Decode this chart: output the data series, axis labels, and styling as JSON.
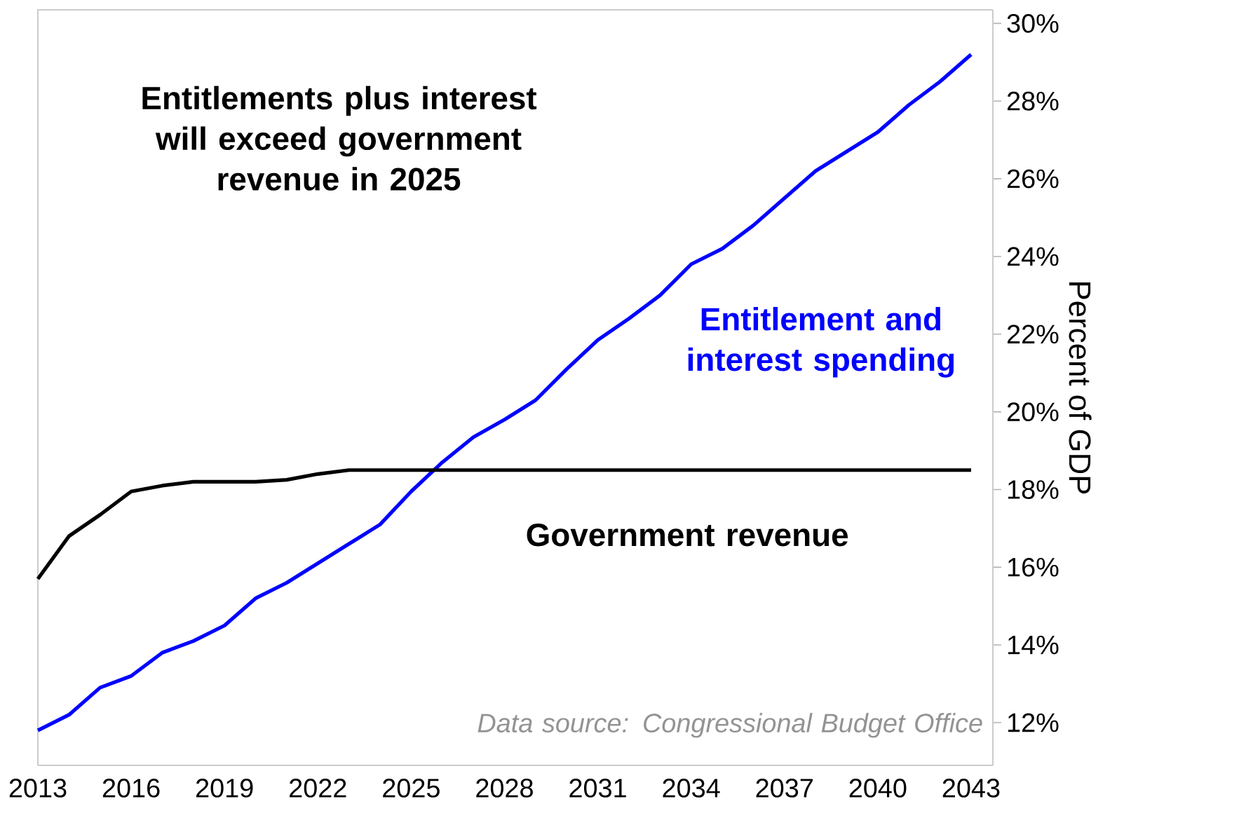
{
  "chart_data": {
    "type": "line",
    "ylabel": "Percent of GDP",
    "annotations": [
      "**Entitlements plus interest will exceed government revenue in 2025**",
      "*Data source: Congressional Budget Office*"
    ],
    "x": [
      2013,
      2014,
      2015,
      2016,
      2017,
      2018,
      2019,
      2020,
      2021,
      2022,
      2023,
      2024,
      2025,
      2026,
      2027,
      2028,
      2029,
      2030,
      2031,
      2032,
      2033,
      2034,
      2035,
      2036,
      2037,
      2038,
      2039,
      2040,
      2041,
      2042,
      2043
    ],
    "series": [
      {
        "name": "Entitlement and interest spending",
        "color": "#0000ff",
        "values": [
          11.8,
          12.2,
          12.9,
          13.2,
          13.8,
          14.1,
          14.5,
          15.2,
          15.6,
          16.1,
          16.6,
          17.1,
          17.95,
          18.7,
          19.35,
          19.8,
          20.3,
          21.1,
          21.85,
          22.4,
          23.0,
          23.8,
          24.2,
          24.8,
          25.5,
          26.2,
          26.7,
          27.2,
          27.9,
          28.5,
          29.2
        ]
      },
      {
        "name": "Government revenue",
        "color": "#000000",
        "values": [
          15.7,
          16.8,
          17.35,
          17.95,
          18.1,
          18.2,
          18.2,
          18.2,
          18.25,
          18.4,
          18.5,
          18.5,
          18.5,
          18.5,
          18.5,
          18.5,
          18.5,
          18.5,
          18.5,
          18.5,
          18.5,
          18.5,
          18.5,
          18.5,
          18.5,
          18.5,
          18.5,
          18.5,
          18.5,
          18.5,
          18.5
        ]
      }
    ],
    "xlim": [
      2013,
      2043.7
    ],
    "ylim": [
      10.9,
      30.35
    ],
    "xticks": [
      2013,
      2016,
      2019,
      2022,
      2025,
      2028,
      2031,
      2034,
      2037,
      2040,
      2043
    ],
    "yticks": [
      {
        "value": 12,
        "label": "12%"
      },
      {
        "value": 14,
        "label": "14%"
      },
      {
        "value": 16,
        "label": "16%"
      },
      {
        "value": 18,
        "label": "18%"
      },
      {
        "value": 20,
        "label": "20%"
      },
      {
        "value": 22,
        "label": "22%"
      },
      {
        "value": 24,
        "label": "24%"
      },
      {
        "value": 26,
        "label": "26%"
      },
      {
        "value": 28,
        "label": "28%"
      },
      {
        "value": 30,
        "label": "30%"
      }
    ],
    "grid": false,
    "legend": false,
    "marker": "none",
    "line_style": "solid"
  }
}
